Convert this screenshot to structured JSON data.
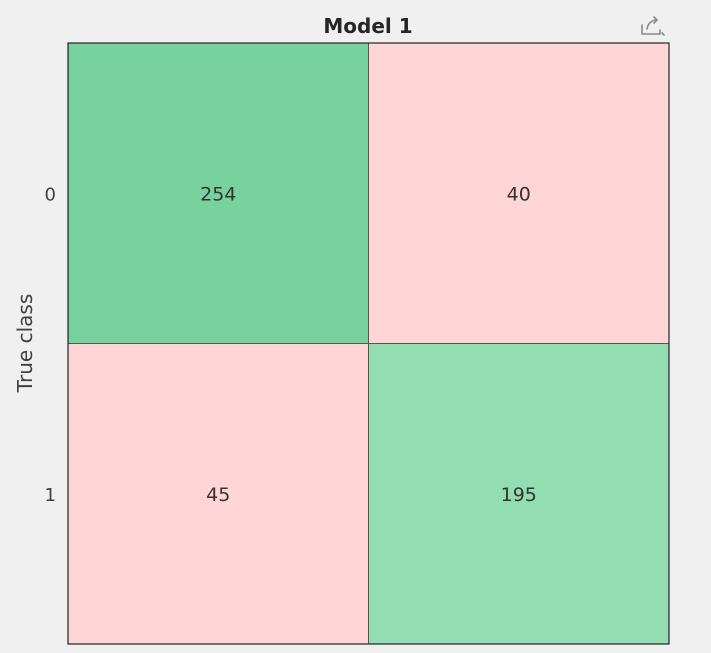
{
  "chart_data": {
    "type": "heatmap",
    "title": "Model 1",
    "ylabel": "True class",
    "xlabel": "",
    "row_labels": [
      "0",
      "1"
    ],
    "col_labels": [
      "",
      ""
    ],
    "values": [
      [
        254,
        40
      ],
      [
        45,
        195
      ]
    ],
    "grid": false,
    "colors": {
      "correct_high": "#78d29e",
      "correct_low": "#92ddb2",
      "incorrect": "#ffd5d5",
      "border": "#555555"
    }
  },
  "toolbar": {
    "export_icon": "export-icon"
  }
}
